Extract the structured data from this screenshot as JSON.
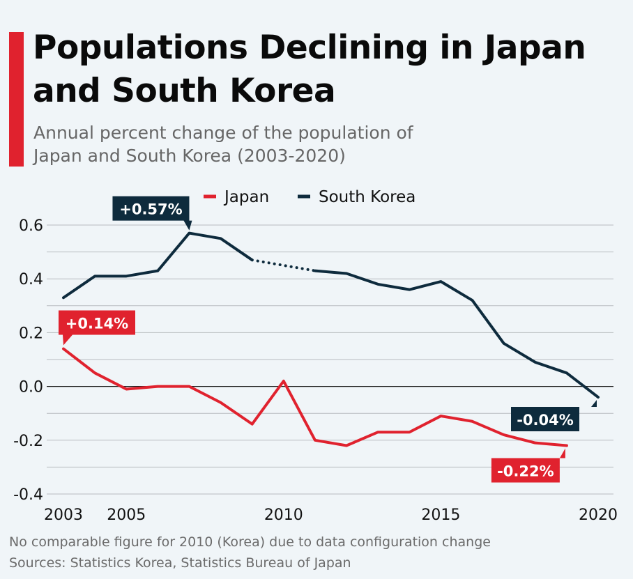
{
  "title": "Populations Declining in Japan and South Korea",
  "subtitle": "Annual percent change of the population of Japan and South Korea (2003-2020)",
  "footer": {
    "note": "No comparable figure for 2010 (Korea) due to data configuration change",
    "sources": "Sources: Statistics Korea, Statistics Bureau of Japan"
  },
  "colors": {
    "japan": "#e0222e",
    "south_korea": "#0e2b3d",
    "accent": "#e0222e",
    "grid": "#b8bcbf",
    "background": "#f0f5f8"
  },
  "chart_data": {
    "type": "line",
    "title": "Populations Declining in Japan and South Korea",
    "xlabel": "",
    "ylabel": "",
    "xlim": [
      2003,
      2020
    ],
    "ylim": [
      -0.4,
      0.6
    ],
    "y_ticks": [
      "0.6",
      "0.4",
      "0.2",
      "0.0",
      "-0.2",
      "-0.4"
    ],
    "y_tick_values": [
      0.6,
      0.4,
      0.2,
      0.0,
      -0.2,
      -0.4
    ],
    "x_ticks": [
      "2003",
      "2005",
      "2010",
      "2015",
      "2020"
    ],
    "x_tick_values": [
      2003,
      2005,
      2010,
      2015,
      2020
    ],
    "grid": true,
    "legend_position": "top-center",
    "series": [
      {
        "name": "Japan",
        "color": "#e0222e",
        "x": [
          2003,
          2004,
          2005,
          2006,
          2007,
          2008,
          2009,
          2010,
          2011,
          2012,
          2013,
          2014,
          2015,
          2016,
          2017,
          2018,
          2019
        ],
        "values": [
          0.14,
          0.05,
          -0.01,
          0.0,
          0.0,
          -0.06,
          -0.14,
          0.02,
          -0.2,
          -0.22,
          -0.17,
          -0.17,
          -0.11,
          -0.13,
          -0.18,
          -0.21,
          -0.22
        ]
      },
      {
        "name": "South Korea",
        "color": "#0e2b3d",
        "x": [
          2003,
          2004,
          2005,
          2006,
          2007,
          2008,
          2009,
          2011,
          2012,
          2013,
          2014,
          2015,
          2016,
          2017,
          2018,
          2019,
          2020
        ],
        "values": [
          0.33,
          0.41,
          0.41,
          0.43,
          0.57,
          0.55,
          0.47,
          0.43,
          0.42,
          0.38,
          0.36,
          0.39,
          0.32,
          0.16,
          0.09,
          0.05,
          -0.04
        ],
        "gap": {
          "from": 2009,
          "to": 2011,
          "style": "dotted"
        }
      }
    ],
    "annotations": [
      {
        "label": "+0.57%",
        "series": "South Korea",
        "x": 2007,
        "value": 0.57
      },
      {
        "label": "+0.14%",
        "series": "Japan",
        "x": 2003,
        "value": 0.14
      },
      {
        "label": "-0.04%",
        "series": "South Korea",
        "x": 2020,
        "value": -0.04
      },
      {
        "label": "-0.22%",
        "series": "Japan",
        "x": 2019,
        "value": -0.22
      }
    ]
  }
}
